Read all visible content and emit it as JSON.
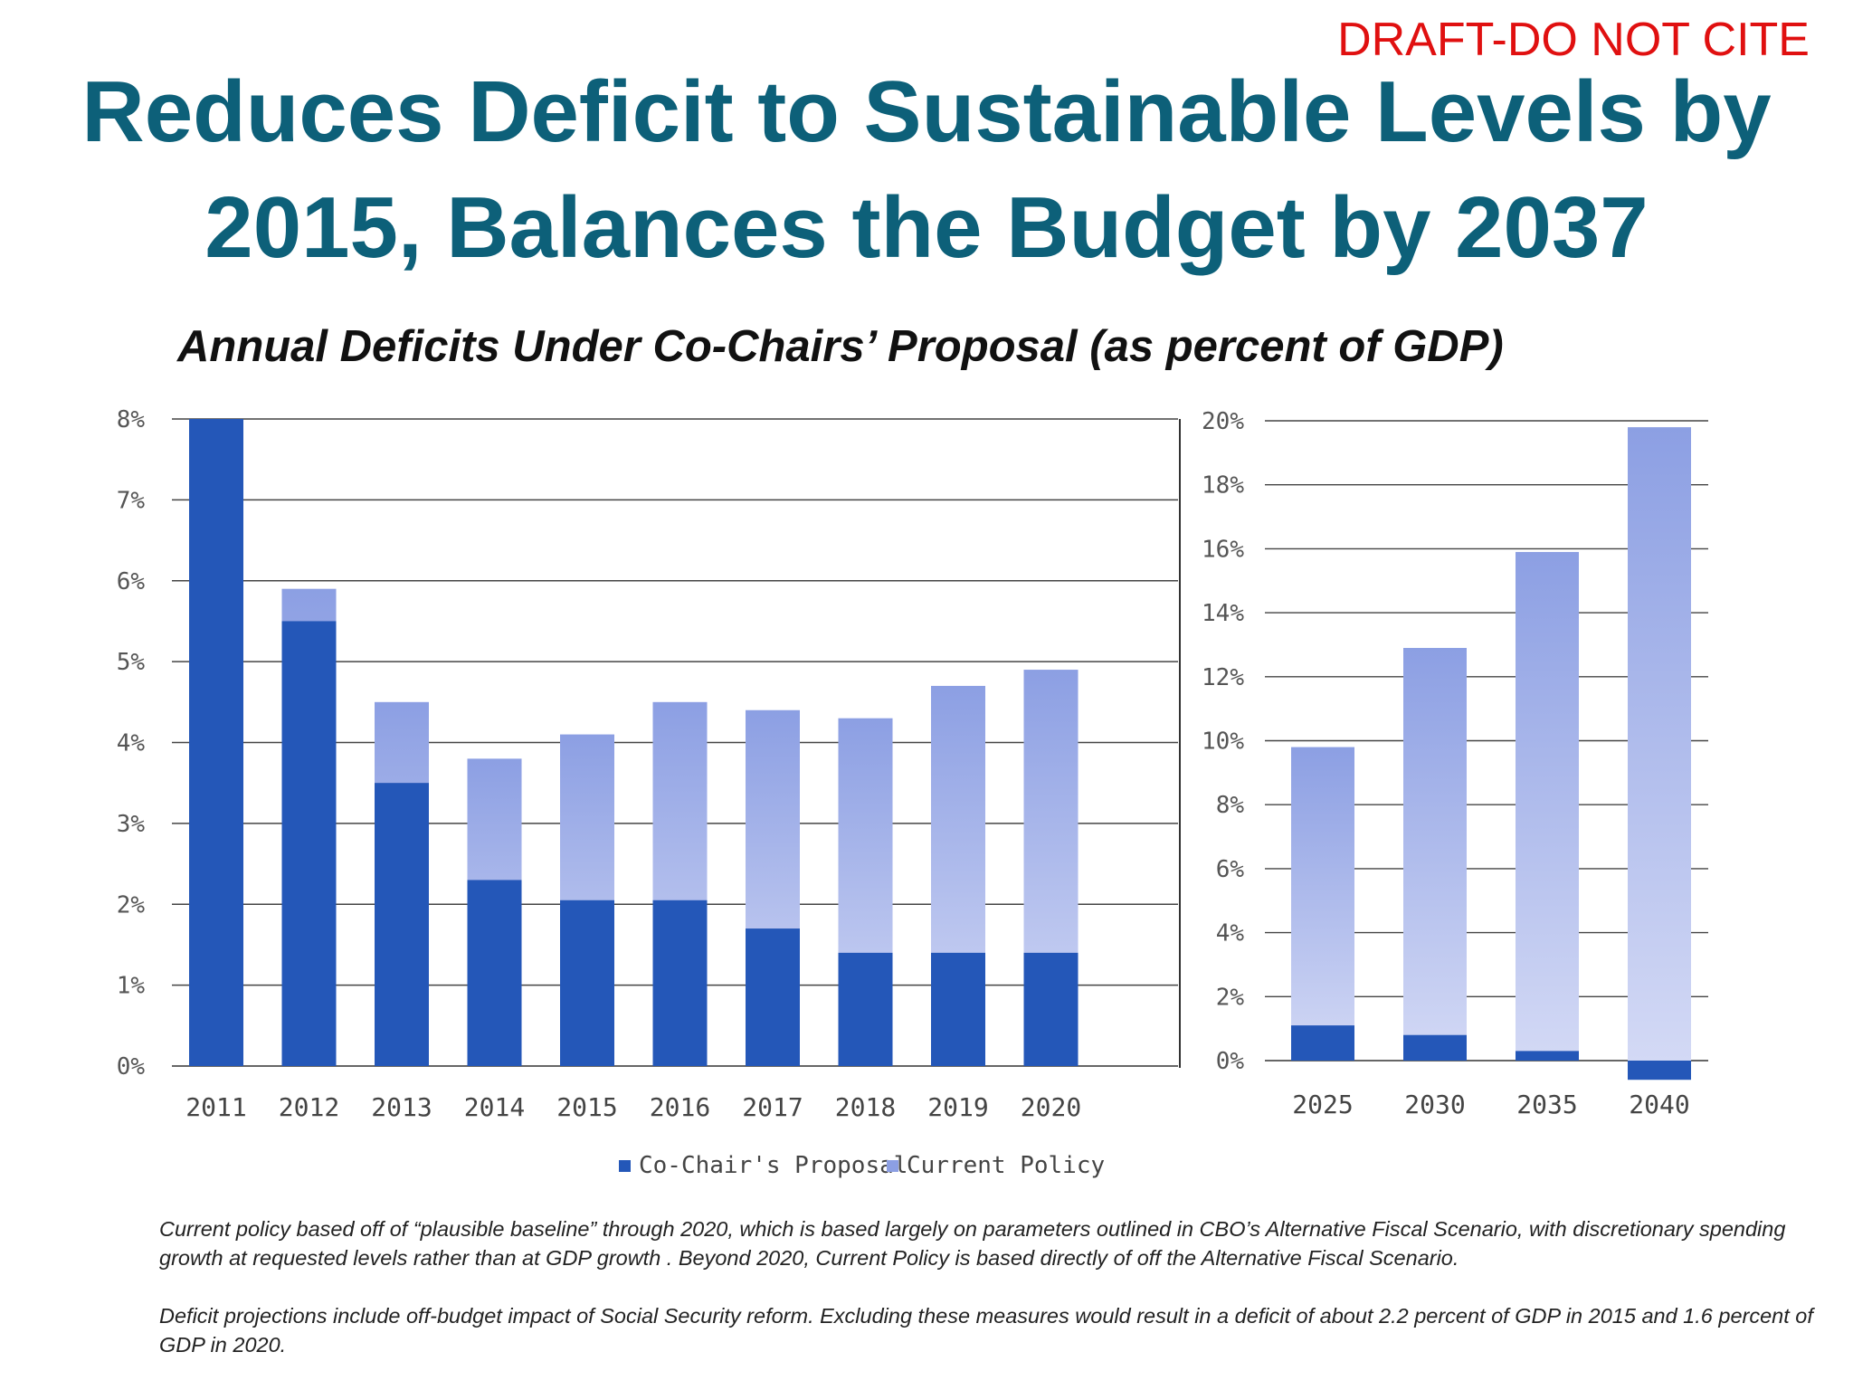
{
  "draft_label": "DRAFT-DO NOT CITE",
  "title_line1": "Reduces Deficit to Sustainable Levels by",
  "title_line2": "2015, Balances the Budget by 2037",
  "subtitle": "Annual Deficits Under Co-Chairs’ Proposal  (as percent of GDP)",
  "colors": {
    "proposal": "#2457b8",
    "policy_dark": "#8c9fe3",
    "policy_light": "#d3d9f5",
    "title": "#0d6079",
    "draft": "#e01010"
  },
  "chart_data": [
    {
      "type": "bar",
      "stacking": "overlay",
      "categories": [
        "2011",
        "2012",
        "2013",
        "2014",
        "2015",
        "2016",
        "2017",
        "2018",
        "2019",
        "2020"
      ],
      "series": [
        {
          "name": "Co-Chair's Proposal",
          "values": [
            8.0,
            5.5,
            3.5,
            2.3,
            2.05,
            2.05,
            1.7,
            1.4,
            1.4,
            1.4
          ]
        },
        {
          "name": "Current Policy",
          "values": [
            8.0,
            5.9,
            4.5,
            3.8,
            4.1,
            4.5,
            4.4,
            4.3,
            4.7,
            4.9
          ]
        }
      ],
      "ylim": [
        0,
        8
      ],
      "yticks": [
        "0%",
        "1%",
        "2%",
        "3%",
        "4%",
        "5%",
        "6%",
        "7%",
        "8%"
      ],
      "grid": true
    },
    {
      "type": "bar",
      "stacking": "overlay",
      "categories": [
        "2025",
        "2030",
        "2035",
        "2040"
      ],
      "series": [
        {
          "name": "Co-Chair's Proposal",
          "values": [
            1.1,
            0.8,
            0.3,
            -0.6
          ]
        },
        {
          "name": "Current Policy",
          "values": [
            9.8,
            12.9,
            15.9,
            19.8
          ]
        }
      ],
      "ylim": [
        0,
        20
      ],
      "yticks": [
        "0%",
        "2%",
        "4%",
        "6%",
        "8%",
        "10%",
        "12%",
        "14%",
        "16%",
        "18%",
        "20%"
      ],
      "grid": true
    }
  ],
  "legend": {
    "placement": "bottom-center",
    "items": [
      "Co-Chair's Proposal",
      "Current Policy"
    ]
  },
  "footnote1": "Current policy based off of “plausible baseline” through 2020, which is based largely on parameters outlined in CBO’s Alternative Fiscal Scenario, with discretionary spending growth at requested levels rather than at GDP growth . Beyond 2020, Current Policy is based directly of off the Alternative Fiscal Scenario.",
  "footnote2": "Deficit projections include off-budget impact of Social Security reform. Excluding these measures would result in a deficit of about 2.2 percent of GDP in 2015 and 1.6 percent of GDP in 2020."
}
